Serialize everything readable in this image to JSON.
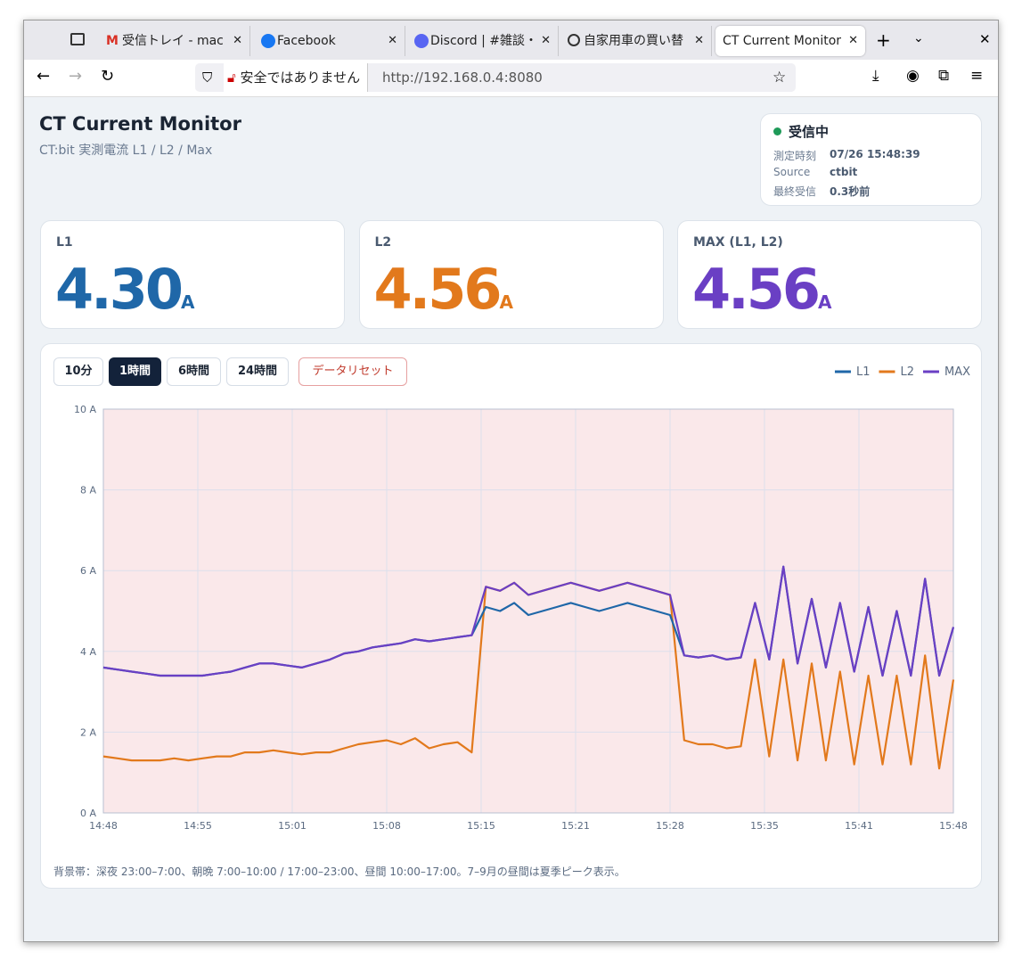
{
  "browser": {
    "tabs": [
      "受信トレイ - mac",
      "Facebook",
      "Discord | #雑談・",
      "自家用車の買い替",
      "CT Current Monitor"
    ],
    "security": "安全ではありません",
    "url": "http://192.168.0.4:8080"
  },
  "header": {
    "title": "CT Current Monitor",
    "subtitle": "CT:bit 実測電流 L1 / L2 / Max"
  },
  "status": {
    "label": "受信中",
    "rows": [
      [
        "測定時刻",
        "07/26 15:48:39"
      ],
      [
        "Source",
        "ctbit"
      ],
      [
        "最終受信",
        "0.3秒前"
      ]
    ]
  },
  "cards": [
    {
      "label": "L1",
      "value": "4.30",
      "unit": "A",
      "color": "#1f67a8"
    },
    {
      "label": "L2",
      "value": "4.56",
      "unit": "A",
      "color": "#e2791c"
    },
    {
      "label": "MAX (L1, L2)",
      "value": "4.56",
      "unit": "A",
      "color": "#6a3fc4"
    }
  ],
  "controls": {
    "ranges": [
      "10分",
      "1時間",
      "6時間",
      "24時間"
    ],
    "active": 1,
    "reset": "データリセット"
  },
  "note": "背景帯：深夜 23:00–7:00、朝晩 7:00–10:00 / 17:00–23:00、昼間 10:00–17:00。7–9月の昼間は夏季ピーク表示。",
  "chart_data": {
    "type": "line",
    "grid": true,
    "legend": "top-right",
    "x": [
      "14:48",
      "14:49",
      "14:50",
      "14:51",
      "14:52",
      "14:53",
      "14:54",
      "14:55",
      "14:56",
      "14:57",
      "14:58",
      "14:59",
      "15:00",
      "15:01",
      "15:02",
      "15:03",
      "15:04",
      "15:05",
      "15:06",
      "15:07",
      "15:08",
      "15:09",
      "15:10",
      "15:11",
      "15:12",
      "15:13",
      "15:14",
      "15:15",
      "15:16",
      "15:17",
      "15:18",
      "15:19",
      "15:20",
      "15:21",
      "15:22",
      "15:23",
      "15:24",
      "15:25",
      "15:26",
      "15:27",
      "15:28",
      "15:29",
      "15:30",
      "15:31",
      "15:32",
      "15:33",
      "15:34",
      "15:35",
      "15:36",
      "15:37",
      "15:38",
      "15:39",
      "15:40",
      "15:41",
      "15:42",
      "15:43",
      "15:44",
      "15:45",
      "15:46",
      "15:47",
      "15:48"
    ],
    "xlim": [
      "14:48",
      "15:48"
    ],
    "xticks": [
      {
        "value": "14:48:00",
        "label": "14:48"
      },
      {
        "value": "14:54:40",
        "label": "14:55"
      },
      {
        "value": "15:01:20",
        "label": "15:01"
      },
      {
        "value": "15:08:00",
        "label": "15:08"
      },
      {
        "value": "15:14:40",
        "label": "15:15"
      },
      {
        "value": "15:21:20",
        "label": "15:21"
      },
      {
        "value": "15:28:00",
        "label": "15:28"
      },
      {
        "value": "15:34:40",
        "label": "15:35"
      },
      {
        "value": "15:41:20",
        "label": "15:41"
      },
      {
        "value": "15:48:00",
        "label": "15:48"
      }
    ],
    "ylim": [
      0,
      10
    ],
    "yticks": [
      {
        "value": 0,
        "label": "0 A"
      },
      {
        "value": 2,
        "label": "2 A"
      },
      {
        "value": 4,
        "label": "4 A"
      },
      {
        "value": 6,
        "label": "6 A"
      },
      {
        "value": 8,
        "label": "8 A"
      },
      {
        "value": 10,
        "label": "10 A"
      }
    ],
    "series": [
      {
        "name": "L1",
        "color": "#1f67a8",
        "values": [
          3.6,
          3.55,
          3.5,
          3.45,
          3.4,
          3.4,
          3.4,
          3.4,
          3.45,
          3.5,
          3.6,
          3.7,
          3.7,
          3.65,
          3.6,
          3.7,
          3.8,
          3.95,
          4.0,
          4.1,
          4.15,
          4.2,
          4.3,
          4.25,
          4.3,
          4.35,
          4.4,
          5.1,
          5.0,
          5.2,
          4.9,
          5.0,
          5.1,
          5.2,
          5.1,
          5.0,
          5.1,
          5.2,
          5.1,
          5.0,
          4.9,
          3.9,
          3.85,
          3.9,
          3.8,
          3.85,
          5.2,
          3.8,
          6.1,
          3.7,
          5.3,
          3.6,
          5.2,
          3.5,
          5.1,
          3.4,
          5.0,
          3.4,
          5.8,
          3.4,
          4.6
        ]
      },
      {
        "name": "L2",
        "color": "#e2791c",
        "values": [
          1.4,
          1.35,
          1.3,
          1.3,
          1.3,
          1.35,
          1.3,
          1.35,
          1.4,
          1.4,
          1.5,
          1.5,
          1.55,
          1.5,
          1.45,
          1.5,
          1.5,
          1.6,
          1.7,
          1.75,
          1.8,
          1.7,
          1.85,
          1.6,
          1.7,
          1.75,
          1.5,
          5.6,
          5.5,
          5.7,
          5.4,
          5.5,
          5.6,
          5.7,
          5.6,
          5.5,
          5.6,
          5.7,
          5.6,
          5.5,
          5.4,
          1.8,
          1.7,
          1.7,
          1.6,
          1.65,
          3.8,
          1.4,
          3.8,
          1.3,
          3.7,
          1.3,
          3.5,
          1.2,
          3.4,
          1.2,
          3.4,
          1.2,
          3.9,
          1.1,
          3.3
        ]
      },
      {
        "name": "MAX",
        "color": "#6a3fc4",
        "values": [
          3.6,
          3.55,
          3.5,
          3.45,
          3.4,
          3.4,
          3.4,
          3.4,
          3.45,
          3.5,
          3.6,
          3.7,
          3.7,
          3.65,
          3.6,
          3.7,
          3.8,
          3.95,
          4.0,
          4.1,
          4.15,
          4.2,
          4.3,
          4.25,
          4.3,
          4.35,
          4.4,
          5.6,
          5.5,
          5.7,
          5.4,
          5.5,
          5.6,
          5.7,
          5.6,
          5.5,
          5.6,
          5.7,
          5.6,
          5.5,
          5.4,
          3.9,
          3.85,
          3.9,
          3.8,
          3.85,
          5.2,
          3.8,
          6.1,
          3.7,
          5.3,
          3.6,
          5.2,
          3.5,
          5.1,
          3.4,
          5.0,
          3.4,
          5.8,
          3.4,
          4.6
        ]
      }
    ]
  }
}
